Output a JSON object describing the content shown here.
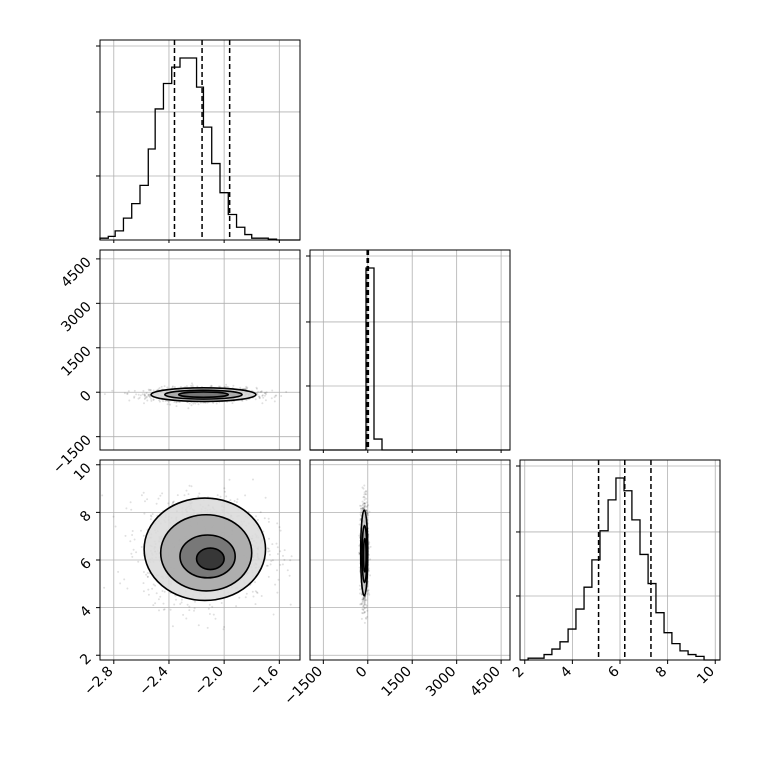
{
  "chart_data": {
    "type": "corner",
    "grid": true,
    "parameters": [
      {
        "ticks": [
          -2.8,
          -2.4,
          -2.0,
          -1.6
        ],
        "tick_labels": [
          "−2.8",
          "−2.4",
          "−2.0",
          "−1.6"
        ],
        "range": [
          -2.9,
          -1.45
        ],
        "quantiles": [
          -2.36,
          -2.16,
          -1.96
        ]
      },
      {
        "ticks": [
          -1500,
          0,
          1500,
          3000,
          4500
        ],
        "tick_labels": [
          "−1500",
          "0",
          "1500",
          "3000",
          "4500"
        ],
        "range": [
          -1950,
          4800
        ],
        "quantiles": [
          -20,
          0,
          20
        ]
      },
      {
        "ticks": [
          2,
          4,
          6,
          8,
          10
        ],
        "tick_labels": [
          "2",
          "4",
          "6",
          "8",
          "10"
        ],
        "range": [
          1.8,
          10.2
        ],
        "quantiles": [
          5.1,
          6.2,
          7.3
        ]
      }
    ],
    "histograms": [
      {
        "param": 0,
        "bin_edges": [
          -2.9,
          -2.84,
          -2.79,
          -2.73,
          -2.67,
          -2.61,
          -2.55,
          -2.5,
          -2.44,
          -2.38,
          -2.32,
          -2.26,
          -2.2,
          -2.15,
          -2.09,
          -2.03,
          -1.97,
          -1.91,
          -1.85,
          -1.8,
          -1.74,
          -1.68,
          -1.62,
          -1.56,
          -1.5,
          -1.45
        ],
        "counts": [
          0.01,
          0.02,
          0.05,
          0.12,
          0.2,
          0.3,
          0.5,
          0.72,
          0.86,
          0.95,
          1.0,
          1.0,
          0.84,
          0.62,
          0.42,
          0.26,
          0.14,
          0.07,
          0.03,
          0.01,
          0.01,
          0.005,
          0.0,
          0.0,
          0.0
        ]
      },
      {
        "param": 1,
        "bin_edges": [
          -1950,
          -1680,
          -1410,
          -1140,
          -870,
          -600,
          -330,
          -60,
          210,
          480,
          750,
          1020,
          1290,
          1560,
          1830,
          2100,
          2370,
          2640,
          2910,
          3180,
          3450,
          3720,
          3990,
          4260,
          4530,
          4800
        ],
        "counts": [
          0,
          0,
          0,
          0,
          0,
          0,
          0,
          1.0,
          0.06,
          0,
          0,
          0,
          0,
          0,
          0,
          0,
          0,
          0,
          0,
          0,
          0,
          0,
          0,
          0,
          0
        ]
      },
      {
        "param": 2,
        "bin_edges": [
          1.8,
          2.14,
          2.47,
          2.81,
          3.14,
          3.48,
          3.82,
          4.15,
          4.49,
          4.82,
          5.16,
          5.5,
          5.83,
          6.17,
          6.5,
          6.84,
          7.18,
          7.51,
          7.85,
          8.18,
          8.52,
          8.86,
          9.19,
          9.53,
          9.86,
          10.2
        ],
        "counts": [
          0.0,
          0.01,
          0.01,
          0.03,
          0.06,
          0.1,
          0.17,
          0.28,
          0.4,
          0.55,
          0.71,
          0.88,
          1.0,
          0.93,
          0.77,
          0.58,
          0.42,
          0.26,
          0.15,
          0.09,
          0.05,
          0.03,
          0.02,
          0.0,
          0.0
        ]
      }
    ],
    "joint_distributions": [
      {
        "x_param": 0,
        "y_param": 1,
        "contour_levels": [
          {
            "center": [
              -2.15,
              -80
            ],
            "half_width": [
              0.38,
              230
            ]
          },
          {
            "center": [
              -2.15,
              -80
            ],
            "half_width": [
              0.28,
              150
            ]
          },
          {
            "center": [
              -2.15,
              -80
            ],
            "half_width": [
              0.18,
              90
            ]
          }
        ]
      },
      {
        "x_param": 0,
        "y_param": 2,
        "contour_levels": [
          {
            "center": [
              -2.14,
              6.45
            ],
            "half_width": [
              0.44,
              2.15
            ]
          },
          {
            "center": [
              -2.13,
              6.3
            ],
            "half_width": [
              0.33,
              1.6
            ]
          },
          {
            "center": [
              -2.12,
              6.15
            ],
            "half_width": [
              0.2,
              0.9
            ]
          },
          {
            "center": [
              -2.1,
              6.05
            ],
            "half_width": [
              0.1,
              0.45
            ]
          }
        ]
      },
      {
        "x_param": 1,
        "y_param": 2,
        "contour_levels": [
          {
            "center": [
              -120,
              6.3
            ],
            "half_width": [
              120,
              1.8
            ]
          },
          {
            "center": [
              -110,
              6.25
            ],
            "half_width": [
              80,
              1.2
            ]
          },
          {
            "center": [
              -100,
              6.2
            ],
            "half_width": [
              45,
              0.7
            ]
          }
        ]
      }
    ]
  }
}
